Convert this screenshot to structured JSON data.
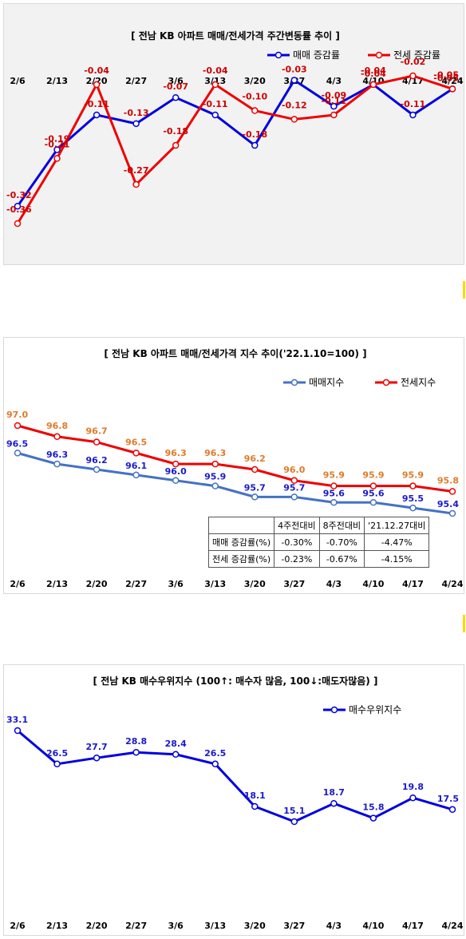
{
  "charts": [
    {
      "type": "line",
      "title": "[ 전남  KB 아파트 매매/전세가격 주간변동률 추이 ]",
      "categories": [
        "2/6",
        "2/13",
        "2/20",
        "2/27",
        "3/6",
        "3/13",
        "3/20",
        "3/27",
        "4/3",
        "4/10",
        "4/17",
        "4/24"
      ],
      "ylim": [
        -0.3,
        0.0
      ],
      "series": [
        {
          "name": "매매 증감률",
          "color": "#0000e0",
          "label_color": "#cc0000",
          "values": [
            -0.32,
            -0.19,
            -0.11,
            -0.13,
            -0.07,
            -0.11,
            -0.18,
            -0.03,
            -0.09,
            -0.04,
            -0.11,
            -0.05
          ]
        },
        {
          "name": "전세 증감률",
          "color": "#ee0000",
          "label_color": "#cc0000",
          "values": [
            -0.36,
            -0.21,
            -0.04,
            -0.27,
            -0.18,
            -0.04,
            -0.1,
            -0.12,
            -0.11,
            -0.04,
            -0.02,
            -0.05
          ]
        }
      ]
    },
    {
      "type": "line",
      "title": "[  전남  KB 아파트 매매/전세가격 지수 추이('22.1.10=100)  ]",
      "categories": [
        "2/6",
        "2/13",
        "2/20",
        "2/27",
        "3/6",
        "3/13",
        "3/20",
        "3/27",
        "4/3",
        "4/10",
        "4/17",
        "4/24"
      ],
      "ylim": [
        93.0,
        98.0
      ],
      "series": [
        {
          "name": "매매지수",
          "color": "#4472c4",
          "label_color": "#1a1acc",
          "values": [
            96.5,
            96.3,
            96.2,
            96.1,
            96.0,
            95.9,
            95.7,
            95.7,
            95.6,
            95.6,
            95.5,
            95.4
          ]
        },
        {
          "name": "전세지수",
          "color": "#ee0000",
          "label_color": "#e07b2a",
          "values": [
            97.0,
            96.8,
            96.7,
            96.5,
            96.3,
            96.3,
            96.2,
            96.0,
            95.9,
            95.9,
            95.9,
            95.8
          ]
        }
      ],
      "table": {
        "headers": [
          "",
          "4주전대비",
          "8주전대비",
          "'21.12.27대비"
        ],
        "rows": [
          [
            "매매 증감률(%)",
            "-0.30%",
            "-0.70%",
            "-4.47%"
          ],
          [
            "전세 증감률(%)",
            "-0.23%",
            "-0.67%",
            "-4.15%"
          ]
        ]
      }
    },
    {
      "type": "line",
      "title": "[  전남  KB 매수우위지수 (100↑: 매수자 많음, 100↓:매도자많음)  ]",
      "categories": [
        "2/6",
        "2/13",
        "2/20",
        "2/27",
        "3/6",
        "3/13",
        "3/20",
        "3/27",
        "4/3",
        "4/10",
        "4/17",
        "4/24"
      ],
      "ylim": [
        0,
        40
      ],
      "series": [
        {
          "name": "매수우위지수",
          "color": "#0000e0",
          "label_color": "#1a1acc",
          "values": [
            33.1,
            26.5,
            27.7,
            28.8,
            28.4,
            26.5,
            18.1,
            15.1,
            18.7,
            15.8,
            19.8,
            17.5
          ]
        }
      ]
    }
  ]
}
